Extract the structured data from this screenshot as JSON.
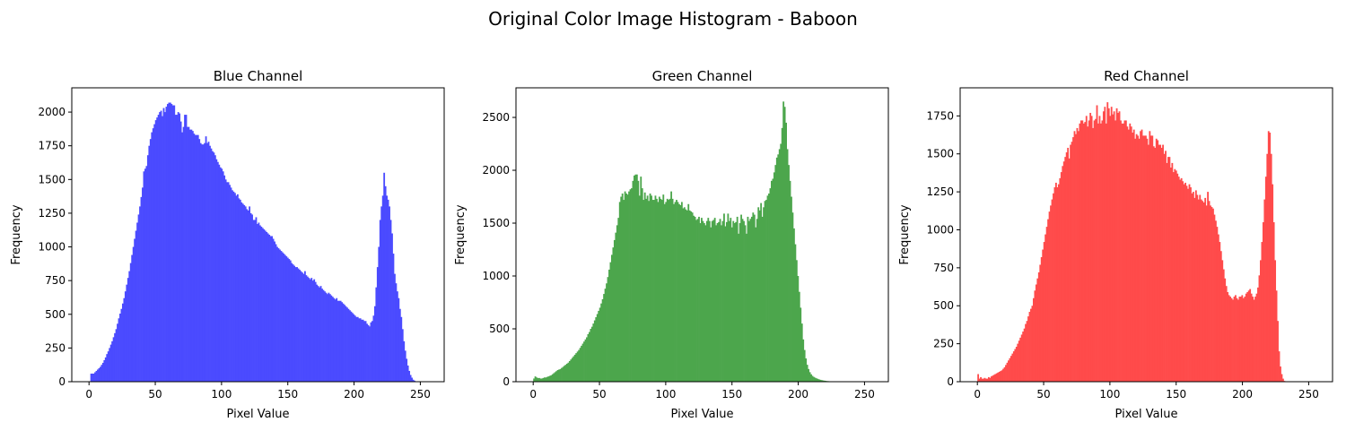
{
  "figure": {
    "title": "Original Color Image Histogram - Baboon"
  },
  "chart_data": [
    {
      "type": "bar",
      "title": "Blue Channel",
      "xlabel": "Pixel Value",
      "ylabel": "Frequency",
      "color": "#4b4bff",
      "xlim": [
        -13,
        268
      ],
      "ylim": [
        0,
        2180
      ],
      "xticks": [
        0,
        50,
        100,
        150,
        200,
        250
      ],
      "yticks": [
        0,
        250,
        500,
        750,
        1000,
        1250,
        1500,
        1750,
        2000
      ],
      "bins": 256,
      "x_range": [
        0,
        255
      ],
      "values": [
        0,
        60,
        60,
        60,
        70,
        80,
        90,
        100,
        110,
        125,
        140,
        160,
        180,
        205,
        225,
        250,
        275,
        300,
        330,
        360,
        390,
        430,
        470,
        505,
        540,
        580,
        620,
        670,
        720,
        770,
        820,
        880,
        940,
        1000,
        1060,
        1120,
        1180,
        1240,
        1300,
        1370,
        1440,
        1560,
        1580,
        1600,
        1680,
        1750,
        1800,
        1850,
        1880,
        1910,
        1940,
        1960,
        1980,
        2000,
        2010,
        1970,
        2030,
        2000,
        2040,
        2060,
        2070,
        2070,
        2060,
        2050,
        2050,
        1980,
        1980,
        2000,
        1990,
        1930,
        1850,
        1890,
        1980,
        1980,
        1890,
        1890,
        1870,
        1870,
        1860,
        1840,
        1830,
        1830,
        1830,
        1800,
        1770,
        1760,
        1760,
        1770,
        1820,
        1770,
        1780,
        1750,
        1730,
        1710,
        1700,
        1680,
        1650,
        1630,
        1610,
        1590,
        1580,
        1560,
        1530,
        1500,
        1480,
        1480,
        1460,
        1440,
        1420,
        1410,
        1400,
        1380,
        1390,
        1360,
        1350,
        1330,
        1320,
        1310,
        1300,
        1280,
        1270,
        1300,
        1250,
        1240,
        1200,
        1200,
        1220,
        1170,
        1180,
        1160,
        1150,
        1140,
        1130,
        1120,
        1110,
        1100,
        1090,
        1080,
        1080,
        1060,
        1040,
        1020,
        1000,
        990,
        980,
        970,
        960,
        950,
        940,
        930,
        920,
        910,
        900,
        880,
        870,
        860,
        850,
        850,
        840,
        830,
        820,
        810,
        800,
        820,
        790,
        780,
        770,
        760,
        770,
        750,
        760,
        740,
        720,
        710,
        700,
        710,
        690,
        680,
        670,
        660,
        650,
        660,
        650,
        640,
        630,
        620,
        610,
        620,
        600,
        600,
        600,
        590,
        580,
        570,
        560,
        550,
        540,
        530,
        520,
        510,
        500,
        490,
        480,
        480,
        470,
        470,
        460,
        460,
        450,
        450,
        430,
        420,
        410,
        440,
        450,
        490,
        560,
        700,
        850,
        1000,
        1200,
        1300,
        1380,
        1550,
        1450,
        1380,
        1350,
        1300,
        1200,
        1100,
        950,
        800,
        730,
        670,
        620,
        540,
        480,
        390,
        300,
        230,
        170,
        120,
        80,
        50,
        30,
        15,
        8,
        3,
        1,
        0,
        0,
        0,
        0
      ]
    },
    {
      "type": "bar",
      "title": "Green Channel",
      "xlabel": "Pixel Value",
      "ylabel": "Frequency",
      "color": "#4ca64c",
      "xlim": [
        -13,
        268
      ],
      "ylim": [
        0,
        2780
      ],
      "xticks": [
        0,
        50,
        100,
        150,
        200,
        250
      ],
      "yticks": [
        0,
        500,
        1000,
        1500,
        2000,
        2500
      ],
      "bins": 256,
      "x_range": [
        0,
        255
      ],
      "values": [
        30,
        50,
        40,
        35,
        35,
        30,
        30,
        35,
        40,
        40,
        45,
        50,
        55,
        60,
        70,
        80,
        90,
        100,
        110,
        115,
        120,
        130,
        140,
        150,
        160,
        170,
        180,
        195,
        210,
        225,
        240,
        255,
        270,
        285,
        300,
        320,
        340,
        360,
        380,
        400,
        420,
        450,
        470,
        500,
        520,
        550,
        580,
        610,
        640,
        670,
        700,
        740,
        780,
        830,
        880,
        930,
        990,
        1060,
        1130,
        1200,
        1270,
        1340,
        1410,
        1480,
        1550,
        1700,
        1750,
        1780,
        1720,
        1800,
        1780,
        1770,
        1800,
        1820,
        1830,
        1900,
        1950,
        1960,
        1960,
        1900,
        1760,
        1940,
        1830,
        1720,
        1790,
        1730,
        1760,
        1710,
        1780,
        1760,
        1720,
        1720,
        1760,
        1730,
        1700,
        1750,
        1730,
        1720,
        1770,
        1680,
        1700,
        1730,
        1720,
        1730,
        1800,
        1730,
        1680,
        1700,
        1720,
        1700,
        1680,
        1670,
        1700,
        1640,
        1650,
        1630,
        1620,
        1680,
        1620,
        1610,
        1600,
        1570,
        1560,
        1530,
        1540,
        1560,
        1500,
        1550,
        1520,
        1500,
        1480,
        1520,
        1550,
        1520,
        1460,
        1520,
        1530,
        1550,
        1480,
        1500,
        1510,
        1540,
        1480,
        1520,
        1590,
        1470,
        1510,
        1590,
        1520,
        1550,
        1460,
        1520,
        1500,
        1510,
        1560,
        1400,
        1500,
        1580,
        1540,
        1520,
        1480,
        1400,
        1560,
        1520,
        1540,
        1560,
        1600,
        1580,
        1460,
        1540,
        1650,
        1620,
        1690,
        1560,
        1650,
        1710,
        1720,
        1760,
        1780,
        1830,
        1900,
        1920,
        1980,
        2050,
        2120,
        2150,
        2200,
        2250,
        2400,
        2650,
        2600,
        2450,
        2200,
        2050,
        1900,
        1750,
        1600,
        1450,
        1300,
        1150,
        1000,
        850,
        700,
        550,
        400,
        300,
        220,
        160,
        120,
        90,
        70,
        55,
        45,
        38,
        32,
        27,
        22,
        18,
        15,
        12,
        10,
        8,
        6,
        5,
        4,
        3,
        2,
        2,
        1,
        1,
        0,
        0,
        0,
        0,
        0,
        0,
        0,
        0,
        0,
        0,
        0,
        0,
        0,
        0,
        0,
        0,
        0,
        0,
        0,
        0,
        0,
        0,
        0,
        0,
        0,
        0,
        0,
        0,
        0,
        0,
        0,
        0,
        0,
        0,
        0
      ]
    },
    {
      "type": "bar",
      "title": "Red Channel",
      "xlabel": "Pixel Value",
      "ylabel": "Frequency",
      "color": "#ff4b4b",
      "xlim": [
        -13,
        268
      ],
      "ylim": [
        0,
        1935
      ],
      "xticks": [
        0,
        50,
        100,
        150,
        200,
        250
      ],
      "yticks": [
        0,
        250,
        500,
        750,
        1000,
        1250,
        1500,
        1750
      ],
      "bins": 256,
      "x_range": [
        0,
        255
      ],
      "values": [
        50,
        20,
        30,
        20,
        20,
        25,
        20,
        20,
        30,
        25,
        35,
        40,
        45,
        50,
        55,
        60,
        65,
        70,
        75,
        85,
        95,
        110,
        125,
        140,
        155,
        170,
        185,
        200,
        215,
        230,
        250,
        270,
        290,
        310,
        330,
        350,
        380,
        400,
        430,
        460,
        480,
        500,
        550,
        600,
        640,
        680,
        720,
        770,
        820,
        870,
        920,
        970,
        1020,
        1070,
        1120,
        1160,
        1200,
        1240,
        1280,
        1310,
        1280,
        1300,
        1340,
        1380,
        1420,
        1450,
        1480,
        1510,
        1540,
        1470,
        1560,
        1580,
        1610,
        1650,
        1630,
        1670,
        1650,
        1700,
        1720,
        1720,
        1700,
        1710,
        1750,
        1680,
        1720,
        1770,
        1750,
        1670,
        1720,
        1730,
        1820,
        1700,
        1750,
        1700,
        1720,
        1780,
        1810,
        1700,
        1840,
        1800,
        1750,
        1810,
        1760,
        1780,
        1720,
        1800,
        1770,
        1780,
        1720,
        1700,
        1700,
        1720,
        1720,
        1680,
        1660,
        1700,
        1680,
        1640,
        1660,
        1600,
        1630,
        1620,
        1600,
        1650,
        1660,
        1620,
        1620,
        1620,
        1600,
        1560,
        1650,
        1620,
        1620,
        1550,
        1540,
        1600,
        1590,
        1560,
        1560,
        1540,
        1560,
        1500,
        1520,
        1440,
        1480,
        1480,
        1410,
        1440,
        1380,
        1400,
        1390,
        1370,
        1350,
        1330,
        1340,
        1320,
        1300,
        1310,
        1290,
        1270,
        1300,
        1280,
        1240,
        1250,
        1210,
        1260,
        1230,
        1200,
        1230,
        1200,
        1190,
        1180,
        1210,
        1160,
        1250,
        1190,
        1160,
        1150,
        1140,
        1100,
        1060,
        1020,
        970,
        920,
        860,
        800,
        740,
        680,
        630,
        590,
        570,
        560,
        550,
        540,
        560,
        570,
        550,
        540,
        560,
        560,
        570,
        550,
        560,
        580,
        590,
        600,
        610,
        580,
        560,
        540,
        560,
        580,
        620,
        700,
        800,
        920,
        1050,
        1200,
        1350,
        1500,
        1650,
        1640,
        1500,
        1300,
        1050,
        800,
        600,
        400,
        200,
        100,
        50,
        20,
        5,
        0,
        0
      ]
    }
  ]
}
